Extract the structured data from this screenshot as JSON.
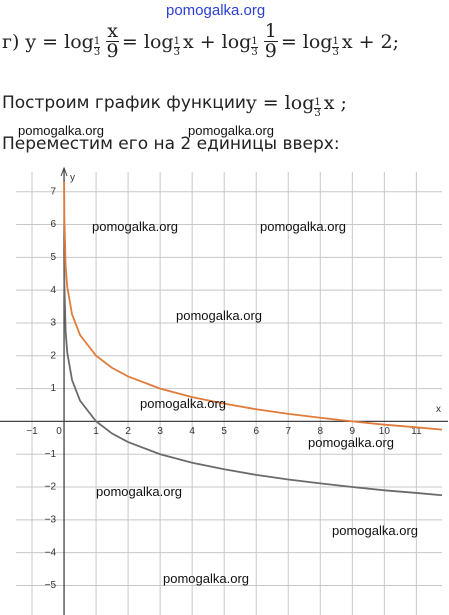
{
  "watermarks": [
    "pomogalka.org",
    "pomogalka.org",
    "pomogalka.org",
    "pomogalka.org",
    "pomogalka.org",
    "pomogalka.org",
    "pomogalka.org",
    "pomogalka.org",
    "pomogalka.org",
    "pomogalka.org",
    "pomogalka.org"
  ],
  "formula": [
    "г) y = log",
    "1",
    "3",
    "x",
    "9",
    "= log",
    "1",
    "3",
    "x + log",
    "1",
    "3",
    "1",
    "9",
    "= log",
    "1",
    "3",
    "x + 2;"
  ],
  "sentence1": [
    "Построим график функции ",
    "y = log",
    "1",
    "3",
    "x ;"
  ],
  "sentence2": "Переместим его на 2 единицы вверх:",
  "chart_data": {
    "type": "line",
    "x_label": "x",
    "y_label": "y",
    "x": [
      0.003,
      0.01,
      0.05,
      0.1,
      0.25,
      0.5,
      1,
      1.5,
      2,
      3,
      4,
      5,
      6,
      7,
      8,
      9,
      10,
      11,
      11.8
    ],
    "series": [
      {
        "color": "#6b6b6b",
        "values": [
          5.29,
          4.19,
          2.73,
          2.1,
          1.26,
          0.63,
          0,
          -0.37,
          -0.63,
          -1,
          -1.26,
          -1.46,
          -1.63,
          -1.77,
          -1.89,
          -2,
          -2.1,
          -2.18,
          -2.25
        ]
      },
      {
        "color": "#e07b39",
        "values": [
          7.29,
          6.19,
          4.73,
          4.1,
          3.26,
          2.63,
          2,
          1.63,
          1.37,
          1,
          0.74,
          0.54,
          0.37,
          0.23,
          0.11,
          0,
          -0.1,
          -0.18,
          -0.25
        ]
      }
    ],
    "xlim": [
      -1.5,
      11.8
    ],
    "ylim": [
      -5.9,
      7.6
    ],
    "xticks": [
      {
        "value": -1,
        "label": "−1"
      },
      0,
      1,
      2,
      3,
      4,
      5,
      6,
      7,
      8,
      9,
      10,
      11
    ],
    "yticks": [
      {
        "value": -5,
        "label": "−5"
      },
      {
        "value": -4,
        "label": "−4"
      },
      {
        "value": -3,
        "label": "−3"
      },
      {
        "value": -2,
        "label": "−2"
      },
      {
        "value": -1,
        "label": "−1"
      },
      1,
      2,
      3,
      4,
      5,
      6,
      7
    ],
    "grid": true
  }
}
